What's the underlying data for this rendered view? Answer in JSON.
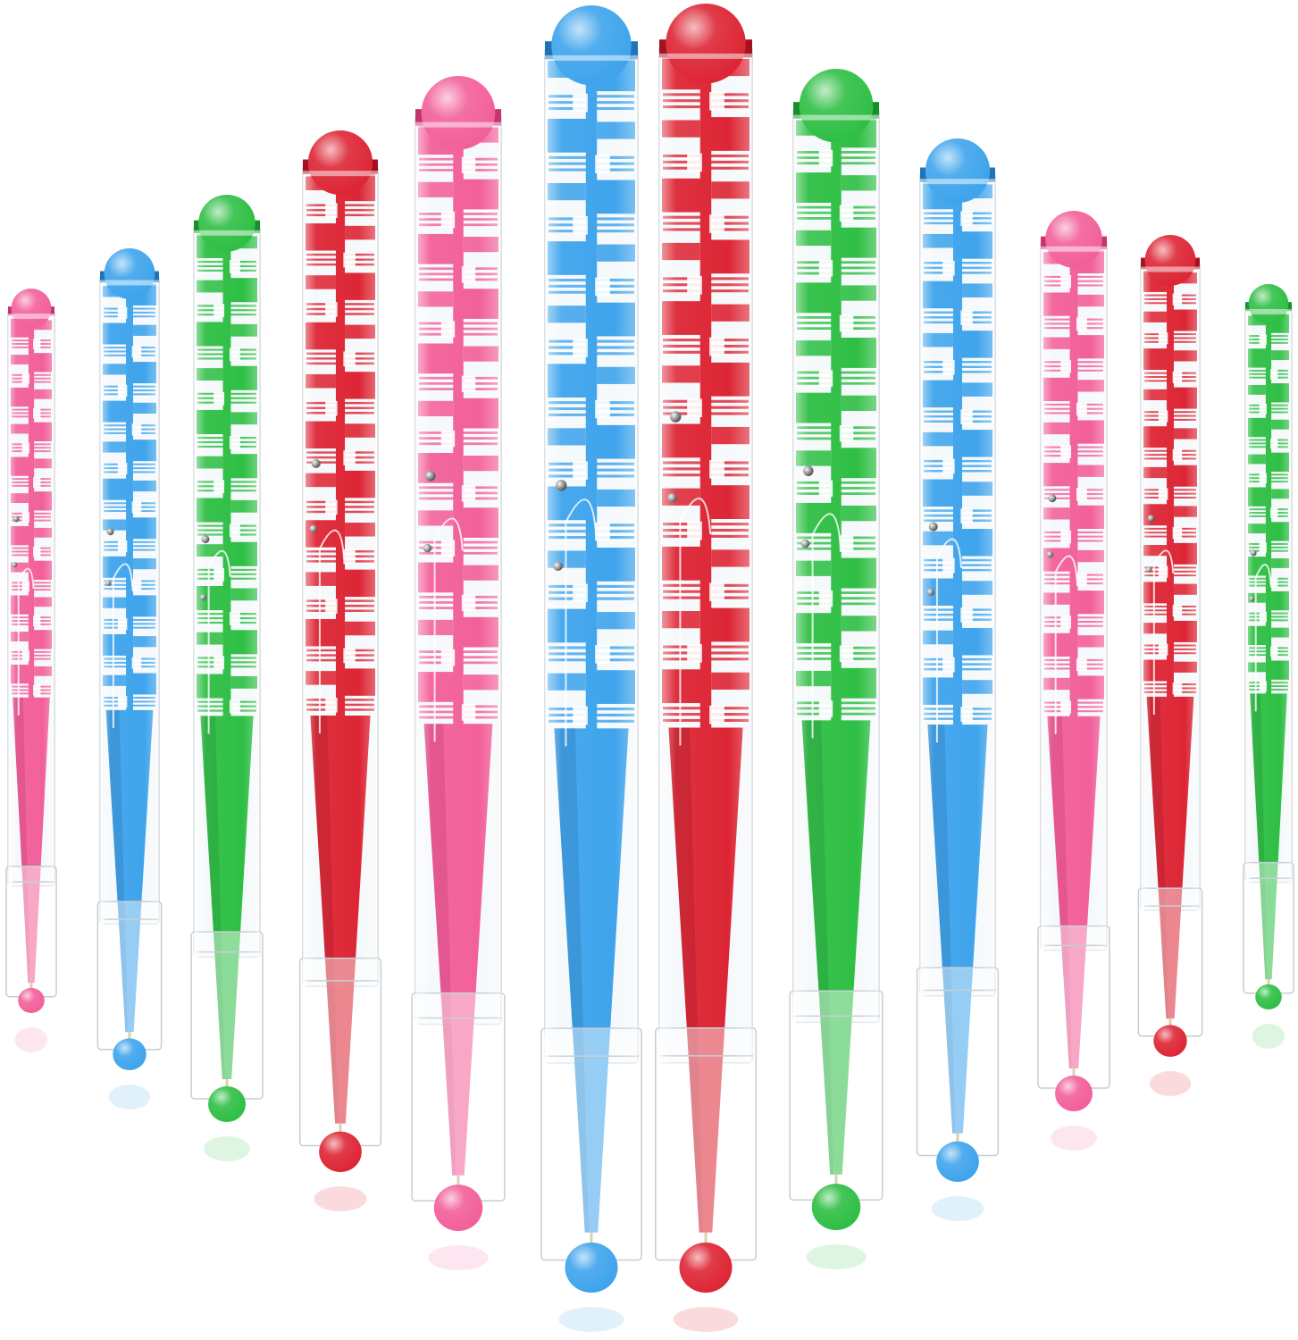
{
  "scene": {
    "subject": "maze-pens",
    "background": "#ffffff"
  },
  "palette": {
    "pink": {
      "main": "#f2609a",
      "light": "#f79cc2",
      "dark": "#c7336f"
    },
    "blue": {
      "main": "#3fa4ec",
      "light": "#86c7f5",
      "dark": "#1f74b8"
    },
    "green": {
      "main": "#2fbf45",
      "light": "#7bdc88",
      "dark": "#18902a"
    },
    "red": {
      "main": "#dd2635",
      "light": "#ef6b76",
      "dark": "#a4121f"
    }
  },
  "pens": [
    {
      "color": "pink"
    },
    {
      "color": "blue"
    },
    {
      "color": "green"
    },
    {
      "color": "red"
    },
    {
      "color": "pink"
    },
    {
      "color": "blue"
    },
    {
      "color": "red"
    },
    {
      "color": "green"
    },
    {
      "color": "blue"
    },
    {
      "color": "pink"
    },
    {
      "color": "red"
    },
    {
      "color": "green"
    }
  ]
}
